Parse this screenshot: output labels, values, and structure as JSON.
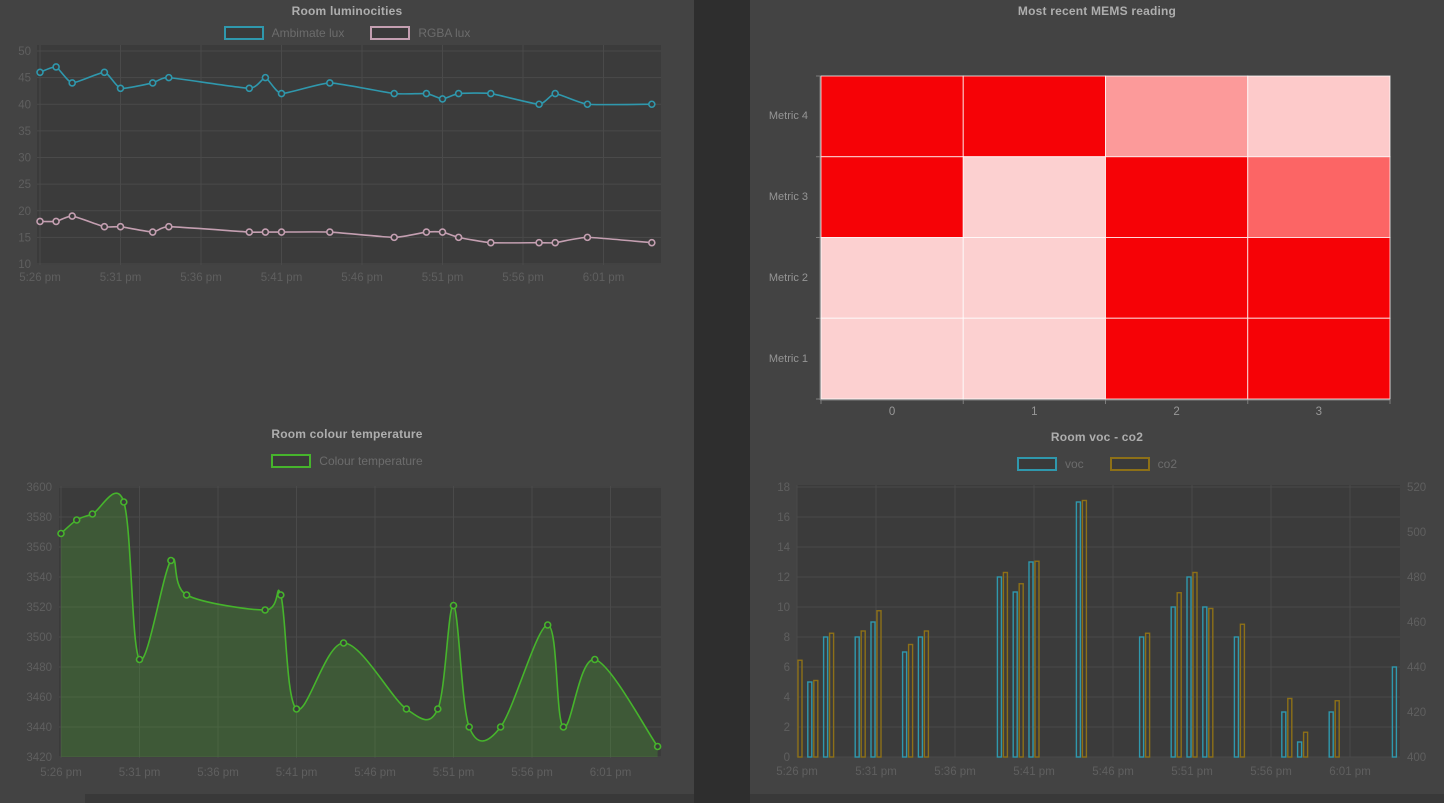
{
  "theme": {
    "pane_bg": "#434343",
    "plot_bg": "#3b3b3b",
    "grid_color": "#4a4a4a",
    "tick_text_color": "#5f5f5f",
    "heatmap_tick_text_color": "#989898",
    "title_color": "#aeaeae",
    "legend_text_color": "#6c6c6c",
    "teal": "#2f98ad",
    "pink": "#c49fb1",
    "green": "#46b42c",
    "gold": "#8d7017"
  },
  "chart_data": [
    {
      "type": "line",
      "title": "Room luminocities",
      "x_minutes": [
        0,
        1,
        2,
        4,
        5,
        7,
        8,
        13,
        14,
        15,
        18,
        22,
        24,
        25,
        26,
        28,
        31,
        32,
        34,
        38
      ],
      "x_tick_minutes": [
        0,
        5,
        10,
        15,
        20,
        25,
        30,
        35
      ],
      "x_tick_labels": [
        "5:26 pm",
        "5:31 pm",
        "5:36 pm",
        "5:41 pm",
        "5:46 pm",
        "5:51 pm",
        "5:56 pm",
        "6:01 pm"
      ],
      "ylim": [
        10,
        50
      ],
      "y_ticks": [
        10,
        15,
        20,
        25,
        30,
        35,
        40,
        45,
        50
      ],
      "grid": true,
      "legend_position": "top",
      "series": [
        {
          "name": "Ambimate lux",
          "color": "#2f98ad",
          "values": [
            46,
            47,
            44,
            46,
            43,
            44,
            45,
            43,
            45,
            42,
            44,
            42,
            42,
            41,
            42,
            42,
            40,
            42,
            40,
            40
          ]
        },
        {
          "name": "RGBA lux",
          "color": "#c49fb1",
          "values": [
            18,
            18,
            19,
            17,
            17,
            16,
            17,
            16,
            16,
            16,
            16,
            15,
            16,
            16,
            15,
            14,
            14,
            14,
            15,
            14
          ]
        }
      ]
    },
    {
      "type": "heatmap",
      "title": "Most recent MEMS reading",
      "rows": [
        "Metric 4",
        "Metric 3",
        "Metric 2",
        "Metric 1"
      ],
      "columns": [
        "0",
        "1",
        "2",
        "3"
      ],
      "values": [
        [
          1.0,
          1.0,
          0.42,
          0.22
        ],
        [
          1.0,
          0.18,
          1.0,
          0.62
        ],
        [
          0.18,
          0.18,
          1.0,
          1.0
        ],
        [
          0.18,
          0.18,
          1.0,
          1.0
        ]
      ],
      "cell_colors": [
        [
          "#f60206",
          "#f60206",
          "#fc9a9a",
          "#fdcaca"
        ],
        [
          "#f60206",
          "#fcd0d0",
          "#f60206",
          "#fc6565"
        ],
        [
          "#fcd0d0",
          "#fcd0d0",
          "#f60206",
          "#f60206"
        ],
        [
          "#fcd0d0",
          "#fcd0d0",
          "#f60206",
          "#f60206"
        ]
      ],
      "scale_note": "saturated red = high, pale pink = low",
      "legend_position": "none"
    },
    {
      "type": "area",
      "title": "Room colour temperature",
      "x_minutes": [
        0,
        1,
        2,
        4,
        5,
        7,
        8,
        13,
        14,
        15,
        18,
        22,
        24,
        25,
        26,
        28,
        31,
        32,
        34,
        38
      ],
      "x_tick_minutes": [
        0,
        5,
        10,
        15,
        20,
        25,
        30,
        35
      ],
      "x_tick_labels": [
        "5:26 pm",
        "5:31 pm",
        "5:36 pm",
        "5:41 pm",
        "5:46 pm",
        "5:51 pm",
        "5:56 pm",
        "6:01 pm"
      ],
      "ylim": [
        3420,
        3600
      ],
      "y_ticks": [
        3420,
        3440,
        3460,
        3480,
        3500,
        3520,
        3540,
        3560,
        3580,
        3600
      ],
      "grid": true,
      "legend_position": "top",
      "series": [
        {
          "name": "Colour temperature",
          "color": "#46b42c",
          "fill": "rgba(70,180,44,0.25)",
          "values": [
            3569,
            3578,
            3582,
            3590,
            3485,
            3551,
            3528,
            3518,
            3528,
            3452,
            3496,
            3452,
            3452,
            3521,
            3440,
            3440,
            3508,
            3440,
            3485,
            3427
          ]
        }
      ]
    },
    {
      "type": "bar",
      "title": "Room voc - co2",
      "x_minutes": [
        0,
        1,
        2,
        4,
        5,
        7,
        8,
        13,
        14,
        15,
        18,
        22,
        24,
        25,
        26,
        28,
        31,
        32,
        34,
        38
      ],
      "x_tick_minutes": [
        0,
        5,
        10,
        15,
        20,
        25,
        30,
        35
      ],
      "x_tick_labels": [
        "5:26 pm",
        "5:31 pm",
        "5:36 pm",
        "5:41 pm",
        "5:46 pm",
        "5:51 pm",
        "5:56 pm",
        "6:01 pm"
      ],
      "ylim": [
        0,
        18
      ],
      "y_ticks": [
        0,
        2,
        4,
        6,
        8,
        10,
        12,
        14,
        16,
        18
      ],
      "ylim_right": [
        400,
        520
      ],
      "y_ticks_right": [
        400,
        420,
        440,
        460,
        480,
        500,
        520
      ],
      "grid": true,
      "legend_position": "top",
      "series": [
        {
          "name": "voc",
          "color": "#2f98ad",
          "axis": "left",
          "values": [
            null,
            5,
            8,
            8,
            9,
            7,
            8,
            12,
            11,
            13,
            17,
            8,
            10,
            12,
            10,
            8,
            3,
            1,
            3,
            6
          ]
        },
        {
          "name": "co2",
          "color": "#8d7017",
          "axis": "right",
          "values": [
            443,
            434,
            455,
            456,
            465,
            450,
            456,
            482,
            477,
            487,
            514,
            455,
            473,
            482,
            466,
            459,
            426,
            411,
            425,
            null
          ]
        }
      ]
    }
  ]
}
